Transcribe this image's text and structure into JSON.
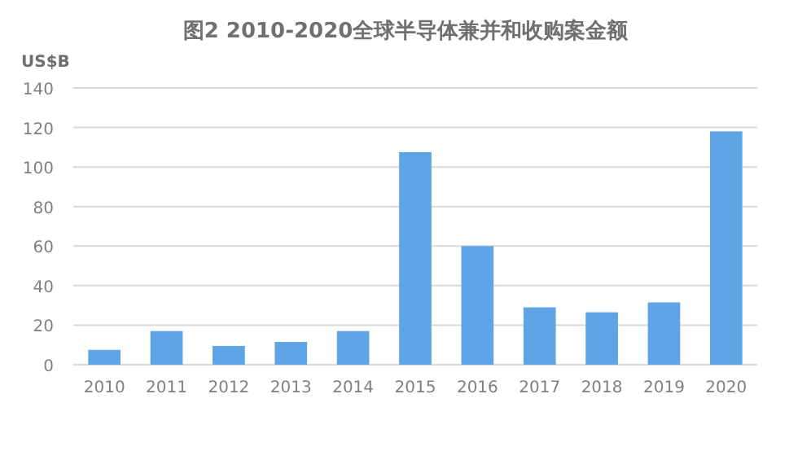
{
  "chart_data": {
    "type": "bar",
    "title": "图2 2010-2020全球半导体兼并和收购案金额",
    "ylabel": "US$B",
    "categories": [
      "2010",
      "2011",
      "2012",
      "2013",
      "2014",
      "2015",
      "2016",
      "2017",
      "2018",
      "2019",
      "2020"
    ],
    "values": [
      7.5,
      17,
      9.5,
      11.5,
      17,
      107.5,
      60,
      29,
      26.5,
      31.5,
      118
    ],
    "color": "#5fa5e6",
    "ylim": [
      0,
      140
    ],
    "yticks": [
      0,
      20,
      40,
      60,
      80,
      100,
      120,
      140
    ],
    "grid": "y"
  }
}
